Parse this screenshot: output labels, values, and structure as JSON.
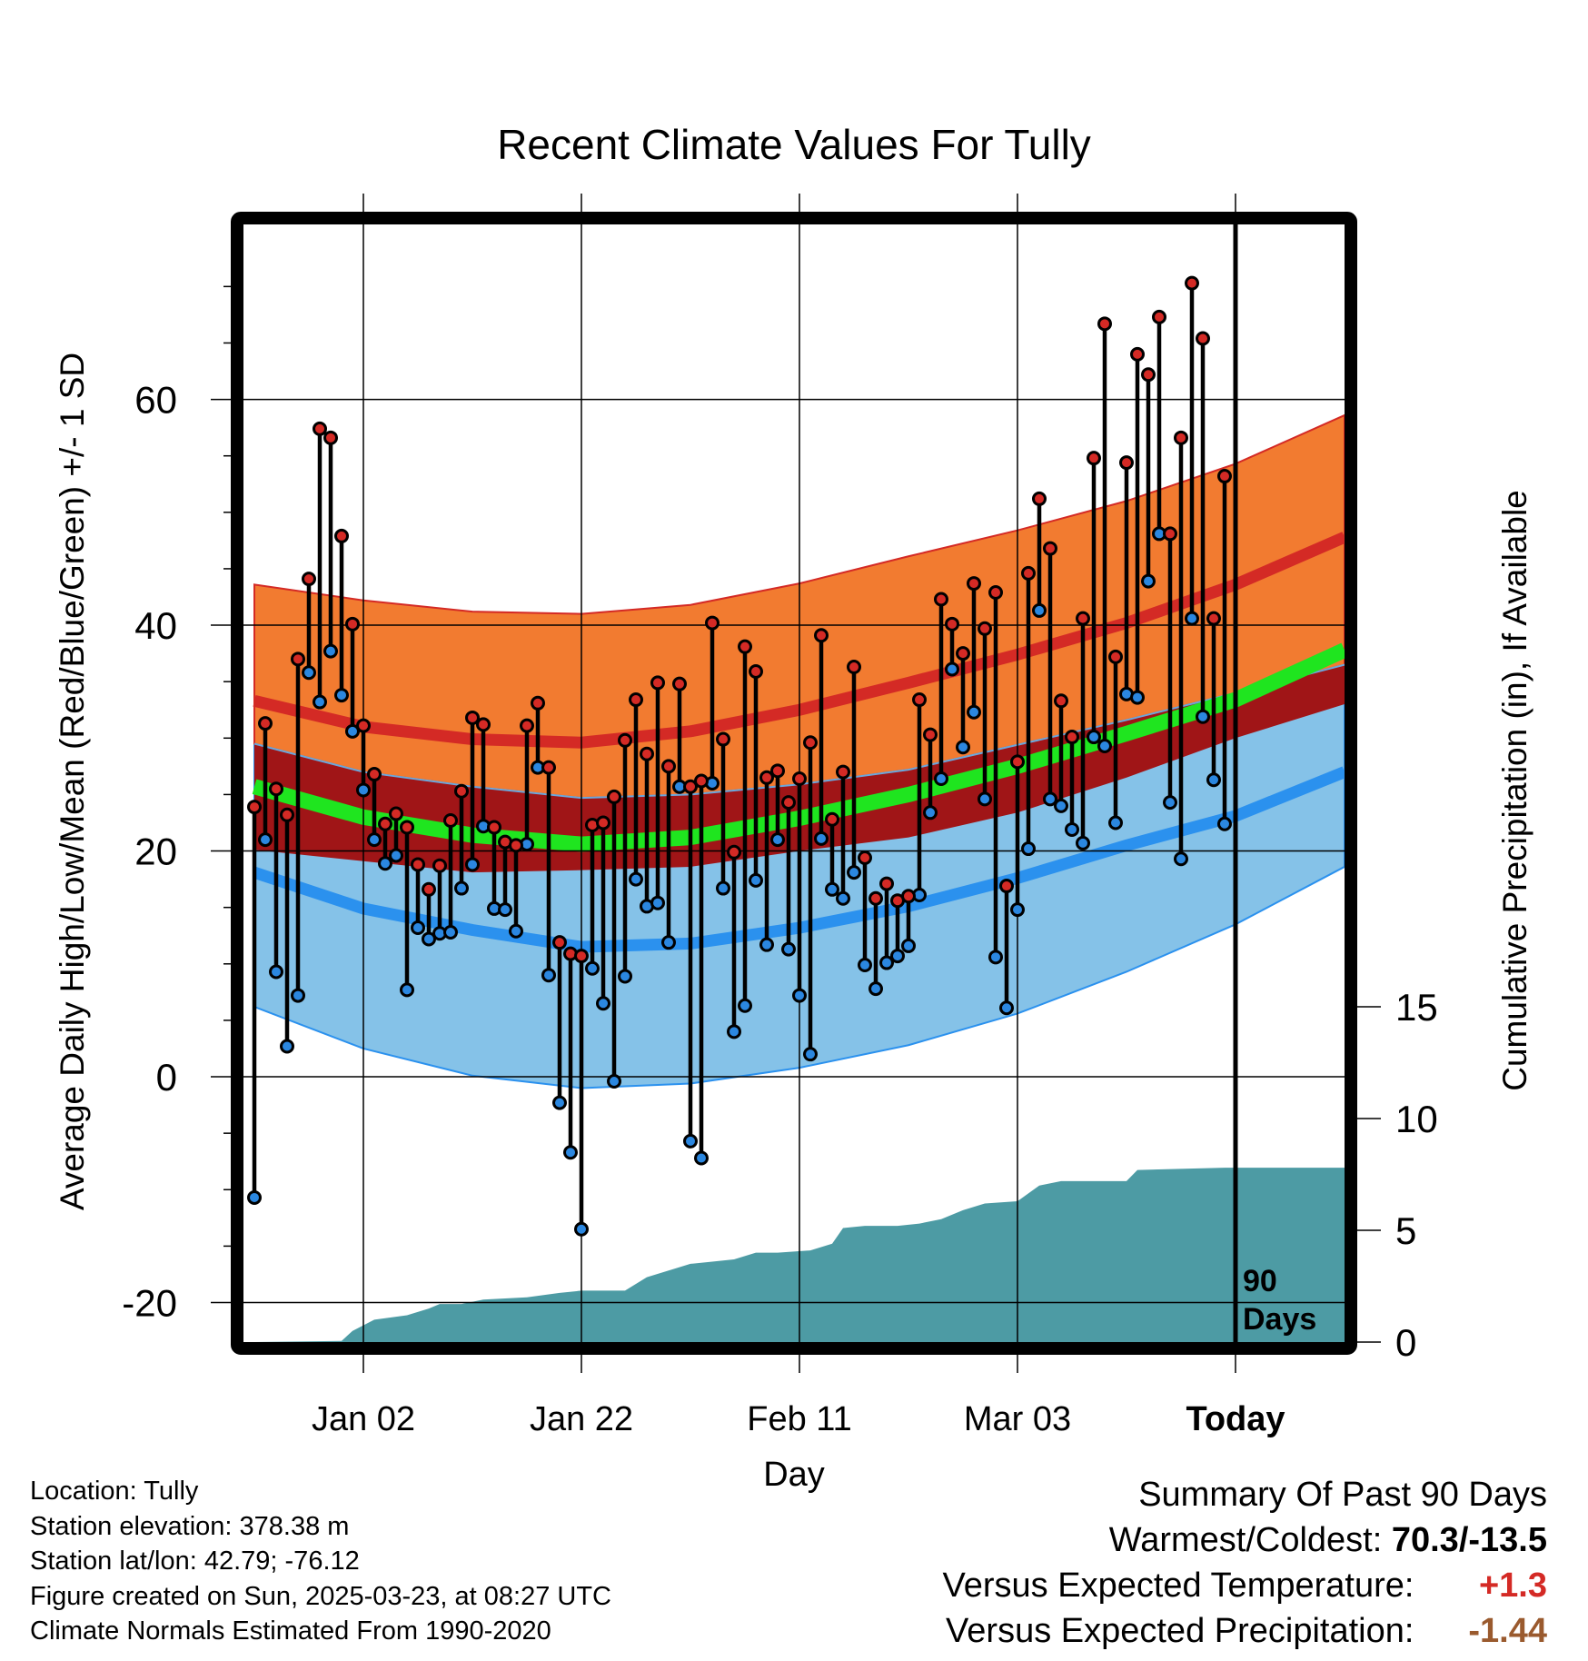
{
  "chart_data": {
    "type": "line",
    "title": "Recent Climate Values For Tully",
    "xlabel": "Day",
    "ylabel": "Average Daily High/Low/Mean (Red/Blue/Green) +/- 1 SD",
    "y2label": "Cumulative Precipitation (in), If Available",
    "ylim": [
      -23.5,
      75.5
    ],
    "y2lim": [
      0,
      50
    ],
    "y_ticks": [
      -20,
      0,
      20,
      40,
      60
    ],
    "y2_ticks": [
      0,
      5,
      10,
      15
    ],
    "x_tick_labels": [
      "Jan 02",
      "Jan 22",
      "Feb 11",
      "Mar 03",
      "Today"
    ],
    "x_tick_days": [
      11,
      31,
      51,
      71,
      91
    ],
    "today_label": "90 Days",
    "grid": true,
    "x_days": [
      1,
      2,
      3,
      4,
      5,
      6,
      7,
      8,
      9,
      10,
      11,
      12,
      13,
      14,
      15,
      16,
      17,
      18,
      19,
      20,
      21,
      22,
      23,
      24,
      25,
      26,
      27,
      28,
      29,
      30,
      31,
      32,
      33,
      34,
      35,
      36,
      37,
      38,
      39,
      40,
      41,
      42,
      43,
      44,
      45,
      46,
      47,
      48,
      49,
      50,
      51,
      52,
      53,
      54,
      55,
      56,
      57,
      58,
      59,
      60,
      61,
      62,
      63,
      64,
      65,
      66,
      67,
      68,
      69,
      70,
      71,
      72,
      73,
      74,
      75,
      76,
      77,
      78,
      79,
      80,
      81,
      82,
      83,
      84,
      85,
      86,
      87,
      88,
      89,
      90,
      91
    ],
    "series": [
      {
        "name": "High",
        "color": "#cc2a2a",
        "values": [
          23.9,
          31.3,
          25.5,
          23.2,
          37.0,
          44.1,
          57.4,
          56.6,
          47.9,
          40.1,
          31.1,
          26.8,
          22.4,
          23.3,
          22.1,
          18.8,
          16.6,
          18.7,
          22.7,
          25.3,
          31.8,
          31.2,
          22.1,
          20.8,
          20.5,
          31.1,
          33.1,
          27.4,
          11.9,
          10.9,
          10.7,
          22.3,
          22.5,
          24.8,
          29.8,
          33.4,
          28.6,
          34.9,
          27.5,
          34.8,
          25.7,
          26.2,
          40.2,
          29.9,
          19.9,
          38.1,
          35.9,
          26.5,
          27.1,
          24.3,
          26.4,
          29.6,
          39.1,
          22.8,
          27.0,
          36.3,
          19.4,
          15.8,
          17.1,
          15.6,
          16.0,
          33.4,
          30.3,
          42.3,
          40.1,
          37.5,
          43.7,
          39.7,
          42.9,
          16.9,
          27.9,
          44.6,
          51.2,
          46.8,
          33.3,
          30.1,
          40.6,
          54.8,
          66.7,
          37.2,
          54.4,
          64.0,
          62.2,
          67.3,
          48.1,
          56.6,
          70.3,
          65.4,
          40.6,
          53.2,
          null
        ]
      },
      {
        "name": "Low",
        "color": "#2c8fe0",
        "values": [
          -10.7,
          21.0,
          9.3,
          2.7,
          7.2,
          35.8,
          33.2,
          37.7,
          33.8,
          30.6,
          25.4,
          21.0,
          18.9,
          19.6,
          7.7,
          13.2,
          12.2,
          12.7,
          12.8,
          16.7,
          18.8,
          22.2,
          14.9,
          14.8,
          12.9,
          20.6,
          27.4,
          9.0,
          -2.3,
          -6.7,
          -13.5,
          9.6,
          6.5,
          -0.4,
          8.9,
          17.5,
          15.1,
          15.4,
          11.9,
          25.7,
          -5.7,
          -7.2,
          26.0,
          16.7,
          4.0,
          6.3,
          17.4,
          11.7,
          21.0,
          11.3,
          7.2,
          2.0,
          21.1,
          16.6,
          15.8,
          18.1,
          9.9,
          7.8,
          10.1,
          10.7,
          11.6,
          16.1,
          23.4,
          26.4,
          36.1,
          29.2,
          32.3,
          24.6,
          10.6,
          6.1,
          14.8,
          20.2,
          41.3,
          24.6,
          24.0,
          21.9,
          20.7,
          30.1,
          29.3,
          22.5,
          33.9,
          33.6,
          43.9,
          48.1,
          24.3,
          19.3,
          40.6,
          31.9,
          26.3,
          22.4,
          null
        ]
      }
    ],
    "normals": {
      "days": [
        1,
        11,
        21,
        31,
        41,
        51,
        61,
        71,
        81,
        91,
        101
      ],
      "high_mean": [
        33.3,
        31.0,
        29.9,
        29.6,
        30.6,
        32.5,
        34.9,
        37.4,
        40.2,
        43.6,
        47.8
      ],
      "high_upper": [
        43.6,
        42.2,
        41.2,
        41.0,
        41.8,
        43.7,
        46.1,
        48.4,
        51.0,
        54.3,
        58.6
      ],
      "high_lower": [
        29.5,
        27.0,
        25.7,
        24.7,
        25.0,
        25.9,
        27.2,
        29.4,
        31.6,
        34.0,
        36.5
      ],
      "low_mean": [
        18.1,
        14.9,
        13.0,
        11.5,
        11.8,
        13.2,
        15.1,
        17.6,
        20.5,
        23.1,
        27.0
      ],
      "low_upper": [
        29.5,
        27.0,
        25.7,
        24.7,
        25.0,
        25.9,
        27.2,
        29.4,
        31.6,
        34.0,
        36.5
      ],
      "low_lower": [
        6.2,
        2.5,
        0.1,
        -1.0,
        -0.6,
        0.8,
        2.8,
        5.6,
        9.3,
        13.5,
        18.6
      ],
      "avg_mean": [
        25.7,
        23.0,
        21.4,
        20.6,
        21.2,
        22.9,
        25.0,
        27.5,
        30.4,
        33.4,
        37.8
      ],
      "avg_band_upper": [
        23.9,
        23.9,
        22.1,
        21.3,
        21.8,
        23.9,
        25.4,
        28.3,
        31.4,
        35.0,
        38.0
      ],
      "avg_band_lower": [
        20.1,
        19.1,
        18.1,
        18.3,
        18.6,
        20.0,
        21.2,
        23.4,
        26.5,
        30.0,
        33.0
      ]
    },
    "precip_cumulative": {
      "days": [
        1,
        9,
        10,
        12,
        15,
        17,
        18,
        20,
        22,
        26,
        29,
        31,
        35,
        37,
        39,
        41,
        43,
        45,
        47,
        49,
        52,
        54,
        55,
        57,
        60,
        62,
        64,
        66,
        68,
        71,
        73,
        75,
        81,
        82,
        90,
        101
      ],
      "values": [
        0,
        0.05,
        0.5,
        1.0,
        1.2,
        1.5,
        1.7,
        1.7,
        1.9,
        2.0,
        2.2,
        2.3,
        2.3,
        2.9,
        3.2,
        3.5,
        3.6,
        3.7,
        4.0,
        4.0,
        4.1,
        4.4,
        5.1,
        5.2,
        5.2,
        5.3,
        5.5,
        5.9,
        6.2,
        6.3,
        7.0,
        7.2,
        7.2,
        7.7,
        7.8,
        7.8
      ]
    },
    "colors": {
      "high_band": "#f27b30",
      "high_mean": "#d42a25",
      "avg_band": "#a01517",
      "avg_mean": "#1fe51f",
      "low_band": "#85c2e8",
      "low_mean": "#2b91ee",
      "precip": "#4d9ba4",
      "high_dot": "#d42a25",
      "low_dot": "#2b87e0"
    }
  },
  "footer": {
    "location": "Location: Tully",
    "elevation": "Station elevation: 378.38 m",
    "latlon": "Station lat/lon: 42.79; -76.12",
    "created": "Figure created on Sun, 2025-03-23, at 08:27 UTC",
    "normals": "Climate Normals Estimated From 1990-2020"
  },
  "summary": {
    "title": "Summary Of Past 90 Days",
    "warmest_label": "Warmest/Coldest:",
    "warmest_value": "70.3/-13.5",
    "temp_label": "Versus Expected Temperature:",
    "temp_value": "+1.3",
    "temp_color": "#d42a25",
    "precip_label": "Versus Expected Precipitation:",
    "precip_value": "-1.44",
    "precip_color": "#9a5a2e"
  }
}
